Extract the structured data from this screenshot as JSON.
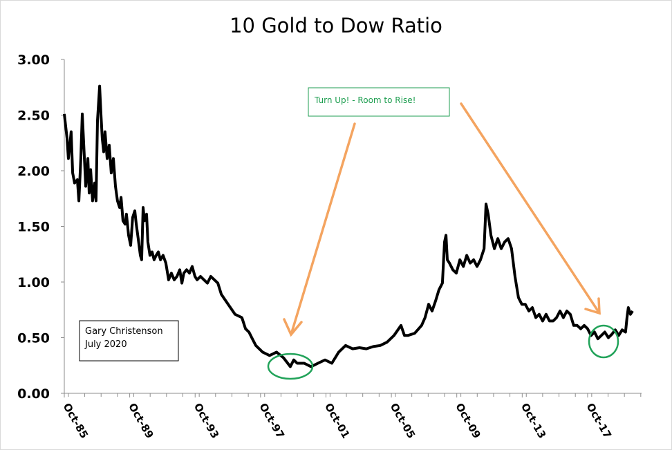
{
  "chart_data": {
    "type": "line",
    "title": "10 Gold to Dow Ratio",
    "xlabel": "",
    "ylabel": "",
    "ylim": [
      0,
      3
    ],
    "xlim": [
      1985.75,
      2021.05
    ],
    "y_ticks": [
      "0.00",
      "0.50",
      "1.00",
      "1.50",
      "2.00",
      "2.50",
      "3.00"
    ],
    "y_tick_values": [
      0,
      0.5,
      1,
      1.5,
      2,
      2.5,
      3
    ],
    "x_ticks": [
      "Oct-85",
      "Oct-89",
      "Oct-93",
      "Oct-97",
      "Oct-01",
      "Oct-05",
      "Oct-09",
      "Oct-13",
      "Oct-17"
    ],
    "x_tick_values": [
      1985.75,
      1989.75,
      1993.75,
      1997.75,
      2001.75,
      2005.75,
      2009.75,
      2013.75,
      2017.75
    ],
    "grid": false,
    "legend": "none",
    "series": [
      {
        "name": "10 Gold to Dow Ratio",
        "color": "#000000",
        "x": [
          1985.75,
          1985.92,
          1986.0,
          1986.09,
          1986.17,
          1986.26,
          1986.38,
          1986.55,
          1986.64,
          1986.76,
          1986.85,
          1986.98,
          1987.06,
          1987.19,
          1987.27,
          1987.36,
          1987.48,
          1987.61,
          1987.69,
          1987.78,
          1987.91,
          1987.99,
          1988.07,
          1988.16,
          1988.24,
          1988.37,
          1988.5,
          1988.62,
          1988.75,
          1988.88,
          1989.0,
          1989.13,
          1989.22,
          1989.34,
          1989.47,
          1989.55,
          1989.68,
          1989.81,
          1989.93,
          1990.06,
          1990.15,
          1990.27,
          1990.4,
          1990.48,
          1990.57,
          1990.65,
          1990.78,
          1990.86,
          1990.99,
          1991.12,
          1991.24,
          1991.37,
          1991.5,
          1991.63,
          1991.79,
          1991.96,
          1992.13,
          1992.3,
          1992.47,
          1992.64,
          1992.81,
          1992.94,
          1993.06,
          1993.23,
          1993.4,
          1993.57,
          1993.74,
          1993.87,
          1994.08,
          1994.29,
          1994.5,
          1994.71,
          1994.93,
          1995.14,
          1995.35,
          1995.77,
          1996.19,
          1996.61,
          1996.83,
          1997.04,
          1997.25,
          1997.46,
          1997.88,
          1998.3,
          1998.73,
          1999.15,
          1999.57,
          1999.78,
          1999.99,
          2000.42,
          2000.84,
          2001.26,
          2001.69,
          2002.11,
          2002.53,
          2002.95,
          2003.38,
          2003.8,
          2004.22,
          2004.64,
          2005.07,
          2005.49,
          2005.91,
          2006.34,
          2006.55,
          2006.76,
          2007.18,
          2007.6,
          2007.81,
          2008.03,
          2008.24,
          2008.45,
          2008.66,
          2008.87,
          2009.0,
          2009.09,
          2009.17,
          2009.3,
          2009.51,
          2009.72,
          2009.94,
          2010.15,
          2010.36,
          2010.57,
          2010.78,
          2010.99,
          2011.2,
          2011.42,
          2011.54,
          2011.67,
          2011.84,
          2012.05,
          2012.26,
          2012.47,
          2012.68,
          2012.89,
          2013.1,
          2013.31,
          2013.52,
          2013.73,
          2013.94,
          2014.16,
          2014.37,
          2014.58,
          2014.79,
          2015.0,
          2015.21,
          2015.42,
          2015.64,
          2015.85,
          2016.06,
          2016.27,
          2016.48,
          2016.69,
          2016.9,
          2017.11,
          2017.33,
          2017.54,
          2017.75,
          2017.96,
          2018.17,
          2018.38,
          2018.59,
          2018.8,
          2019.02,
          2019.23,
          2019.44,
          2019.65,
          2019.86,
          2020.07,
          2020.16,
          2020.24,
          2020.37,
          2020.5
        ],
        "y": [
          2.51,
          2.29,
          2.11,
          2.23,
          2.35,
          1.98,
          1.89,
          1.92,
          1.73,
          2.11,
          2.51,
          2.11,
          1.86,
          2.11,
          1.8,
          2.01,
          1.73,
          1.89,
          1.73,
          2.45,
          2.76,
          2.51,
          2.29,
          2.17,
          2.35,
          2.11,
          2.23,
          1.98,
          2.11,
          1.86,
          1.73,
          1.67,
          1.76,
          1.55,
          1.52,
          1.61,
          1.42,
          1.33,
          1.58,
          1.64,
          1.52,
          1.39,
          1.24,
          1.2,
          1.67,
          1.55,
          1.61,
          1.36,
          1.24,
          1.27,
          1.2,
          1.24,
          1.27,
          1.2,
          1.24,
          1.17,
          1.02,
          1.08,
          1.02,
          1.05,
          1.11,
          0.99,
          1.08,
          1.11,
          1.08,
          1.14,
          1.05,
          1.02,
          1.05,
          1.02,
          0.99,
          1.05,
          1.02,
          0.99,
          0.89,
          0.8,
          0.71,
          0.68,
          0.58,
          0.55,
          0.49,
          0.43,
          0.37,
          0.34,
          0.37,
          0.32,
          0.24,
          0.3,
          0.27,
          0.27,
          0.24,
          0.27,
          0.3,
          0.27,
          0.37,
          0.43,
          0.4,
          0.41,
          0.4,
          0.42,
          0.43,
          0.46,
          0.52,
          0.61,
          0.52,
          0.52,
          0.54,
          0.61,
          0.68,
          0.8,
          0.74,
          0.83,
          0.93,
          0.99,
          1.36,
          1.42,
          1.2,
          1.17,
          1.11,
          1.08,
          1.2,
          1.14,
          1.24,
          1.17,
          1.2,
          1.14,
          1.2,
          1.3,
          1.7,
          1.61,
          1.42,
          1.3,
          1.39,
          1.3,
          1.36,
          1.39,
          1.3,
          1.05,
          0.86,
          0.8,
          0.8,
          0.74,
          0.77,
          0.68,
          0.71,
          0.65,
          0.71,
          0.65,
          0.65,
          0.68,
          0.74,
          0.68,
          0.74,
          0.71,
          0.61,
          0.61,
          0.58,
          0.61,
          0.58,
          0.52,
          0.55,
          0.49,
          0.52,
          0.55,
          0.5,
          0.53,
          0.57,
          0.52,
          0.57,
          0.55,
          0.68,
          0.77,
          0.71,
          0.74
        ]
      }
    ],
    "annotations": {
      "callout": "Turn Up! - Room to Rise!",
      "author_line1": "Gary Christenson",
      "author_line2": "July 2020"
    },
    "colors": {
      "arrow": "#f4a460",
      "callout_text": "#1e9e50",
      "circle": "#22a35a",
      "axis": "#8c8c8c"
    }
  }
}
